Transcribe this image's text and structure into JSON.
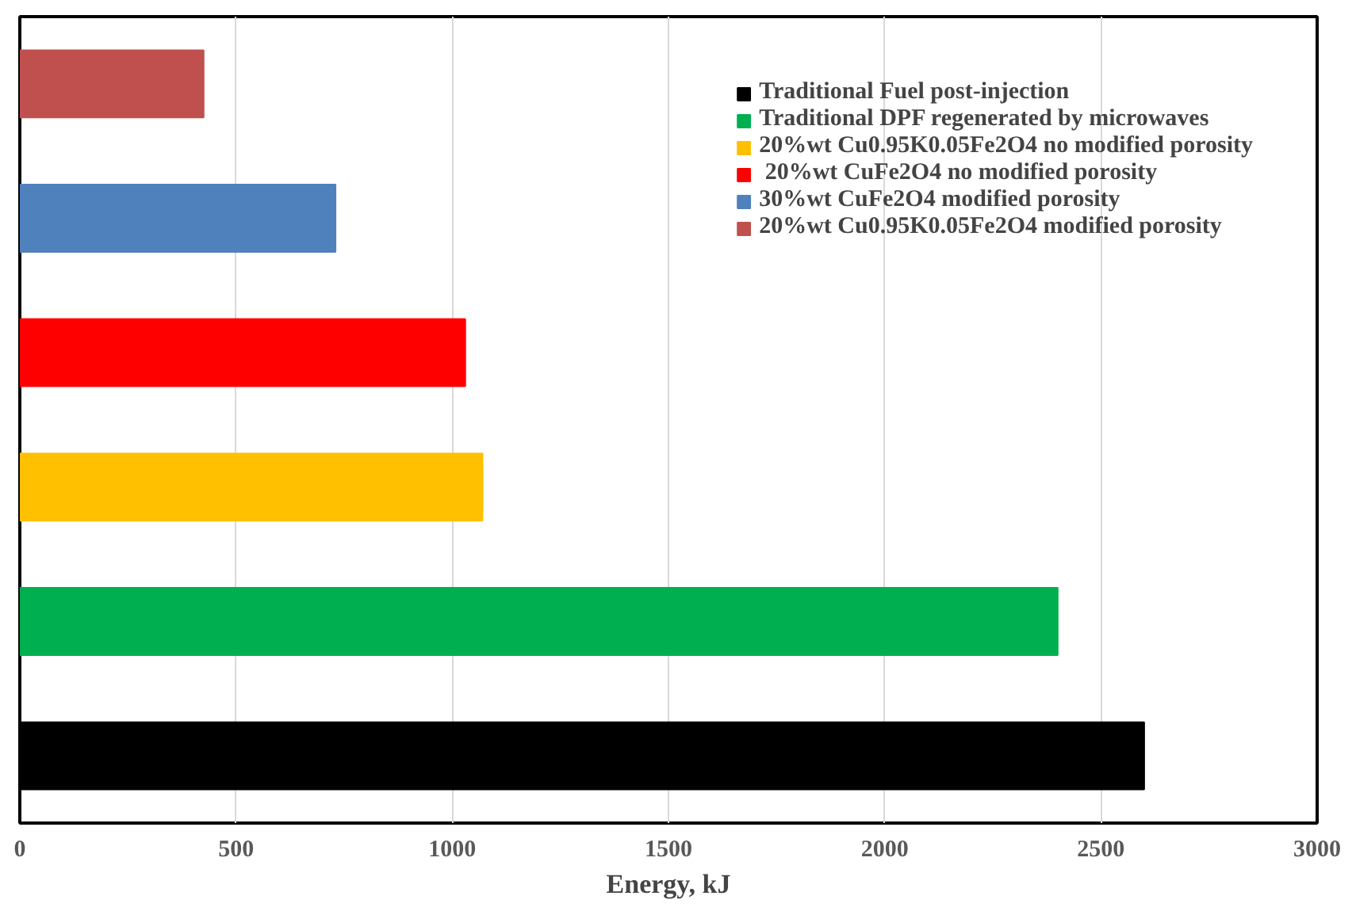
{
  "chart_data": {
    "type": "bar",
    "orientation": "horizontal",
    "xlabel": "Energy, kJ",
    "categories": [
      null,
      null,
      null,
      null,
      null,
      null
    ],
    "series": [
      {
        "name": "Traditional Fuel post-injection",
        "color": "#000000",
        "values": [
          null,
          null,
          null,
          null,
          null,
          2600
        ]
      },
      {
        "name": "Traditional DPF regenerated by microwaves",
        "color": "#00b050",
        "values": [
          null,
          null,
          null,
          null,
          2400,
          null
        ]
      },
      {
        "name": "20%wt Cu0.95K0.05Fe2O4 no modified porosity",
        "color": "#ffc000",
        "values": [
          null,
          null,
          null,
          1070,
          null,
          null
        ]
      },
      {
        "name": " 20%wt CuFe2O4 no modified porosity",
        "color": "#ff0000",
        "values": [
          null,
          null,
          1030,
          null,
          null,
          null
        ]
      },
      {
        "name": "30%wt CuFe2O4 modified porosity",
        "color": "#4f81bd",
        "values": [
          null,
          730,
          null,
          null,
          null,
          null
        ]
      },
      {
        "name": "20%wt Cu0.95K0.05Fe2O4 modified porosity",
        "color": "#c0504d",
        "values": [
          425,
          null,
          null,
          null,
          null,
          null
        ]
      }
    ],
    "xlim": [
      0,
      3000
    ],
    "xticks": [
      0,
      500,
      1000,
      1500,
      2000,
      2500,
      3000
    ],
    "grid": "x",
    "legend": "top right"
  }
}
